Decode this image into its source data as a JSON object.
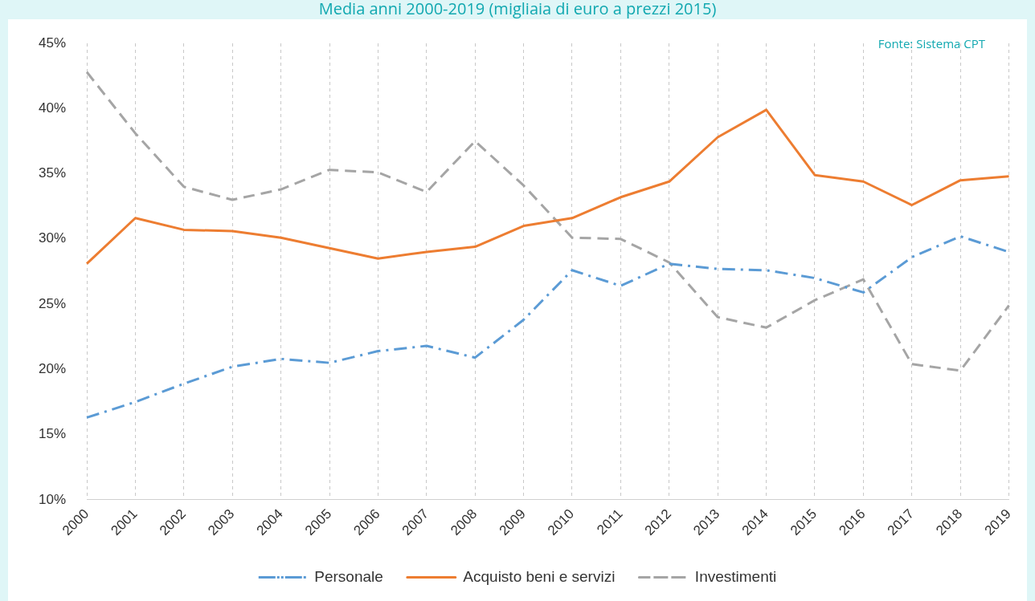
{
  "chart_data": {
    "type": "line",
    "title": "Media anni 2000-2019 (migliaia di euro a prezzi 2015)",
    "annotations": [
      "Fonte: Sistema CPT"
    ],
    "categories": [
      "2000",
      "2001",
      "2002",
      "2003",
      "2004",
      "2005",
      "2006",
      "2007",
      "2008",
      "2009",
      "2010",
      "2011",
      "2012",
      "2013",
      "2014",
      "2015",
      "2016",
      "2017",
      "2018",
      "2019"
    ],
    "series": [
      {
        "name": "Personale",
        "color": "#5b9bd5",
        "line_style": "dotted",
        "values": [
          16.3,
          17.5,
          18.9,
          20.2,
          20.8,
          20.5,
          21.4,
          21.8,
          20.9,
          23.8,
          27.6,
          26.4,
          28.1,
          27.7,
          27.6,
          27.0,
          25.9,
          28.6,
          30.2,
          29.0
        ]
      },
      {
        "name": "Acquisto beni e servizi",
        "color": "#ed7d31",
        "line_style": "solid",
        "values": [
          28.1,
          31.6,
          30.7,
          30.6,
          30.1,
          29.3,
          28.5,
          29.0,
          29.4,
          31.0,
          31.6,
          33.2,
          34.4,
          37.8,
          39.9,
          34.9,
          34.4,
          32.6,
          34.5,
          34.8
        ]
      },
      {
        "name": "Investimenti",
        "color": "#a5a5a5",
        "line_style": "dashed",
        "values": [
          42.8,
          38.1,
          34.0,
          33.0,
          33.8,
          35.3,
          35.1,
          33.6,
          37.5,
          34.1,
          30.1,
          30.0,
          28.2,
          24.0,
          23.2,
          25.3,
          26.9,
          20.4,
          19.9,
          24.9
        ]
      }
    ],
    "ylim": [
      10,
      45
    ],
    "yticks": [
      {
        "value": 10,
        "label": "10%"
      },
      {
        "value": 15,
        "label": "15%"
      },
      {
        "value": 20,
        "label": "20%"
      },
      {
        "value": 25,
        "label": "25%"
      },
      {
        "value": 30,
        "label": "30%"
      },
      {
        "value": 35,
        "label": "35%"
      },
      {
        "value": 40,
        "label": "40%"
      },
      {
        "value": 45,
        "label": "45%"
      }
    ],
    "grid": "x",
    "legend": "bottom",
    "marker": "none"
  }
}
